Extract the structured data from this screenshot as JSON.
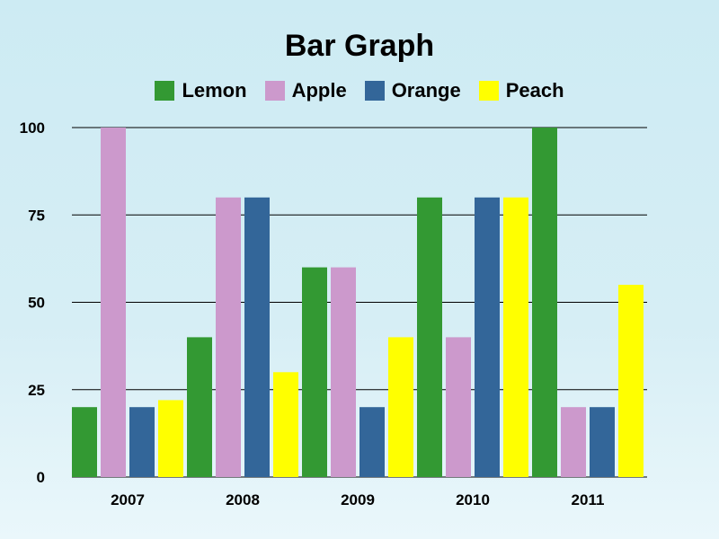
{
  "chart_data": {
    "type": "bar",
    "title": "Bar Graph",
    "categories": [
      "2007",
      "2008",
      "2009",
      "2010",
      "2011"
    ],
    "series": [
      {
        "name": "Lemon",
        "color": "#339933",
        "values": [
          20,
          40,
          60,
          80,
          100
        ]
      },
      {
        "name": "Apple",
        "color": "#cc99cc",
        "values": [
          100,
          80,
          60,
          40,
          20
        ]
      },
      {
        "name": "Orange",
        "color": "#336699",
        "values": [
          20,
          80,
          20,
          80,
          20
        ]
      },
      {
        "name": "Peach",
        "color": "#ffff00",
        "values": [
          22,
          30,
          40,
          80,
          55
        ]
      }
    ],
    "yticks": [
      "0",
      "25",
      "50",
      "75",
      "100"
    ],
    "ylim": [
      0,
      100
    ],
    "xlabel": "",
    "ylabel": "",
    "grid": true,
    "legend_position": "top"
  }
}
